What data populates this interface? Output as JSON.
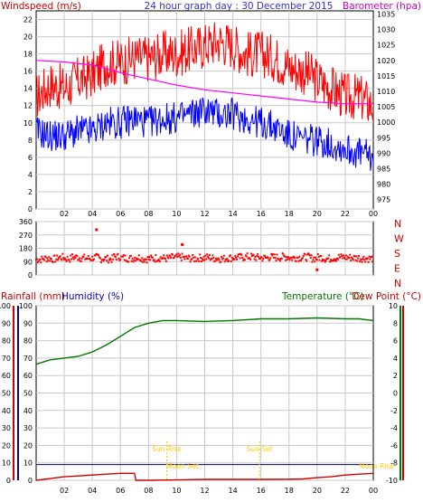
{
  "chart_data": [
    {
      "type": "line",
      "panel": "wind-pressure",
      "title": "24 hour graph day : 30 December 2015",
      "left_label": "Windspeed (m/s)",
      "right_label": "Barometer (hpa)",
      "y_left_ticks": [
        "22",
        "20",
        "18",
        "16",
        "14",
        "12",
        "10",
        "8",
        "6",
        "4",
        "2",
        "0"
      ],
      "ylim_left": [
        0,
        23
      ],
      "y_right_ticks": [
        "1035",
        "1030",
        "1025",
        "1020",
        "1015",
        "1010",
        "1005",
        "1000",
        "995",
        "990",
        "985",
        "980",
        "975"
      ],
      "ylim_right": [
        972,
        1036
      ],
      "x_ticks": [
        "02",
        "04",
        "06",
        "08",
        "10",
        "12",
        "14",
        "16",
        "18",
        "20",
        "22",
        "00"
      ],
      "xlim": [
        0,
        24
      ],
      "series": [
        {
          "role": "gust",
          "color": "#ff0000",
          "x": [
            0,
            1,
            2,
            3,
            4,
            5,
            6,
            7,
            8,
            9,
            10,
            11,
            12,
            13,
            14,
            15,
            16,
            17,
            18,
            19,
            20,
            21,
            22,
            23,
            24
          ],
          "values": [
            13,
            14.5,
            14,
            15,
            15.5,
            17,
            17,
            17.5,
            17.5,
            18,
            18,
            18.5,
            19,
            19.5,
            19,
            18,
            18,
            17.5,
            16.5,
            16,
            15,
            14,
            13,
            13,
            12
          ]
        },
        {
          "role": "average",
          "color": "#0000ff",
          "x": [
            0,
            1,
            2,
            3,
            4,
            5,
            6,
            7,
            8,
            9,
            10,
            11,
            12,
            13,
            14,
            15,
            16,
            17,
            18,
            19,
            20,
            21,
            22,
            23,
            24
          ],
          "values": [
            9,
            8.5,
            8.5,
            9,
            9,
            10,
            10,
            10.5,
            10,
            10.5,
            10.5,
            11,
            11.5,
            11,
            11,
            10.5,
            10,
            9.5,
            8.5,
            8,
            8,
            7.5,
            7,
            6.5,
            6
          ]
        },
        {
          "role": "barometer",
          "axis": "right",
          "color": "#ff00ff",
          "x": [
            0,
            2,
            4,
            6,
            8,
            10,
            12,
            14,
            16,
            18,
            20,
            22,
            24
          ],
          "values": [
            1020,
            1019.5,
            1018.5,
            1016,
            1014,
            1012,
            1010.5,
            1009.5,
            1008.5,
            1007.5,
            1006.5,
            1006,
            1006
          ]
        }
      ]
    },
    {
      "type": "scatter",
      "panel": "wind-direction",
      "y_ticks": [
        "360",
        "270",
        "180",
        "90",
        "0"
      ],
      "ylim": [
        0,
        360
      ],
      "compass": [
        "N",
        "W",
        "S",
        "E",
        "N"
      ],
      "color": "#ff0000",
      "x": [
        0,
        0.5,
        1,
        1.5,
        2,
        2.5,
        3,
        3.5,
        4,
        4.5,
        5,
        5.5,
        6,
        6.5,
        7,
        7.5,
        8,
        8.5,
        9,
        9.5,
        10,
        10.5,
        11,
        11.5,
        12,
        12.5,
        13,
        13.5,
        14,
        14.5,
        15,
        15.5,
        16,
        16.5,
        17,
        17.5,
        18,
        18.5,
        19,
        19.5,
        20,
        20.5,
        21,
        21.5,
        22,
        22.5,
        23,
        23.5,
        24
      ],
      "values": [
        105,
        112,
        108,
        118,
        110,
        120,
        115,
        112,
        118,
        110,
        108,
        122,
        115,
        112,
        118,
        108,
        110,
        115,
        112,
        118,
        120,
        112,
        110,
        115,
        118,
        112,
        110,
        115,
        118,
        120,
        122,
        118,
        115,
        120,
        118,
        122,
        115,
        118,
        120,
        112,
        118,
        110,
        115,
        120,
        118,
        115,
        112,
        110,
        108
      ],
      "outliers": [
        {
          "x": 4.3,
          "y": 305
        },
        {
          "x": 20,
          "y": 35
        },
        {
          "x": 10.4,
          "y": 205
        }
      ]
    },
    {
      "type": "line",
      "panel": "rain-temperature",
      "left_labels": [
        "Rainfall (mm)",
        "Humidity (%)"
      ],
      "right_labels": [
        "Temperature (°C)",
        "Dew Point (°C)"
      ],
      "y_rain_ticks": [
        "100",
        "90",
        "80",
        "70",
        "60",
        "50",
        "40",
        "30",
        "20",
        "10",
        "0"
      ],
      "y_humidity_ticks": [
        "100",
        "90",
        "80",
        "70",
        "60",
        "50",
        "40",
        "30",
        "20",
        "10",
        "0"
      ],
      "y_temp_ticks": [
        "10",
        "8",
        "6",
        "4",
        "2",
        "0",
        "-2",
        "-4",
        "-6",
        "-8",
        "-10"
      ],
      "ylim_left": [
        0,
        100
      ],
      "ylim_right": [
        -10,
        10
      ],
      "x_ticks": [
        "02",
        "04",
        "06",
        "08",
        "10",
        "12",
        "14",
        "16",
        "18",
        "20",
        "22",
        "00"
      ],
      "xlim": [
        0,
        24
      ],
      "series": [
        {
          "role": "temperature",
          "axis": "right",
          "color": "#007700",
          "x": [
            0,
            1,
            2,
            3,
            4,
            5,
            6,
            7,
            8,
            9,
            10,
            12,
            14,
            16,
            18,
            20,
            22,
            23,
            24
          ],
          "values": [
            3.3,
            3.8,
            4,
            4.2,
            4.7,
            5.5,
            6.5,
            7.5,
            8,
            8.3,
            8.3,
            8.2,
            8.3,
            8.5,
            8.5,
            8.6,
            8.5,
            8.5,
            8.3
          ]
        },
        {
          "role": "rainfall",
          "axis": "left",
          "color": "#cc0000",
          "x": [
            0,
            1,
            2,
            3,
            4,
            5,
            6,
            7,
            7.1,
            8,
            10,
            12,
            14,
            16,
            18,
            19,
            20,
            21,
            22,
            23,
            24
          ],
          "values": [
            0,
            1,
            2,
            2.5,
            3,
            3.5,
            4,
            4,
            0,
            0,
            0.2,
            0.5,
            0.5,
            0.5,
            0.6,
            0.8,
            1.5,
            2,
            3,
            3.5,
            4
          ]
        },
        {
          "role": "dew-point",
          "axis": "right",
          "color": "#000066",
          "x": [
            0,
            24
          ],
          "values": [
            -8.2,
            -8.2
          ]
        }
      ],
      "events": [
        {
          "label": "Sun Rise",
          "x": 9.3
        },
        {
          "label": "Moon Set",
          "x": 9.3
        },
        {
          "label": "Sun Set",
          "x": 15.9
        },
        {
          "label": "Moon Rise",
          "x": 23
        }
      ]
    }
  ],
  "colors": {
    "title": "#3333cc",
    "wind_label": "#cc0000",
    "baro_label": "#cc00cc",
    "rain_label": "#cc0000",
    "humidity_label": "#0000cc",
    "temp_label": "#007700",
    "dew_label": "#cc0000",
    "rain_axis": "#cc0000",
    "humidity_axis": "#0000aa",
    "temp_axis": "#007700",
    "event": "#ffcc00",
    "grid": "#c8c8c8"
  }
}
